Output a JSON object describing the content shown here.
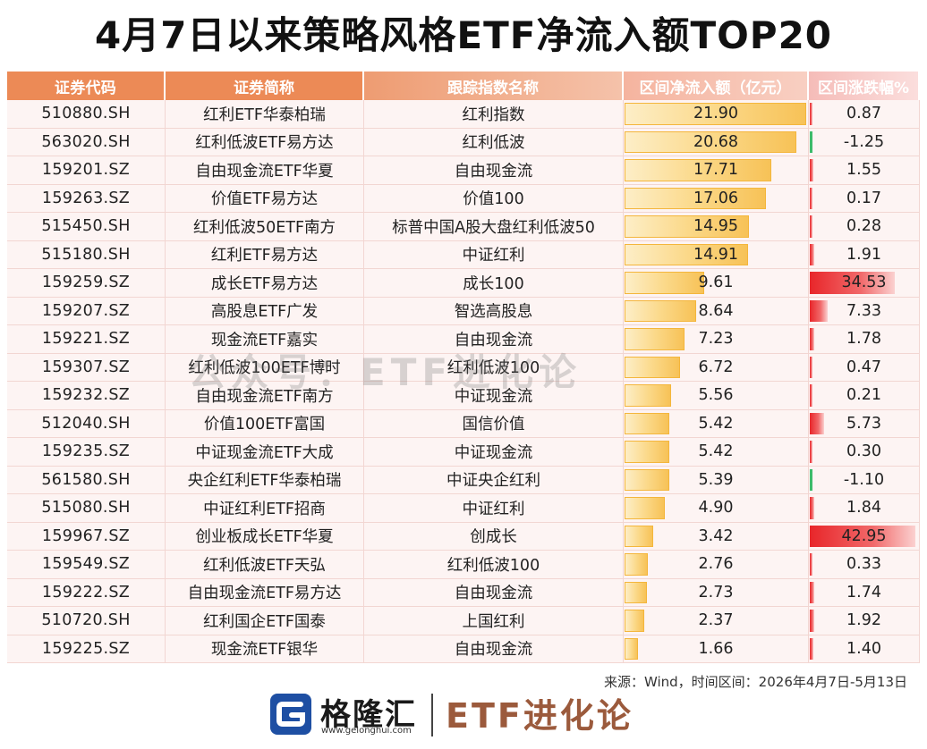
{
  "title": "4月7日以来策略风格ETF净流入额TOP20",
  "headers": {
    "code": "证券代码",
    "name": "证券简称",
    "index": "跟踪指数名称",
    "flow": "区间净流入额（亿元）",
    "chg": "区间涨跌幅%"
  },
  "rows": [
    {
      "code": "510880.SH",
      "name": "红利ETF华泰柏瑞",
      "index": "红利指数",
      "flow": "21.90",
      "chg": "0.87"
    },
    {
      "code": "563020.SH",
      "name": "红利低波ETF易方达",
      "index": "红利低波",
      "flow": "20.68",
      "chg": "-1.25"
    },
    {
      "code": "159201.SZ",
      "name": "自由现金流ETF华夏",
      "index": "自由现金流",
      "flow": "17.71",
      "chg": "1.55"
    },
    {
      "code": "159263.SZ",
      "name": "价值ETF易方达",
      "index": "价值100",
      "flow": "17.06",
      "chg": "0.17"
    },
    {
      "code": "515450.SH",
      "name": "红利低波50ETF南方",
      "index": "标普中国A股大盘红利低波50",
      "flow": "14.95",
      "chg": "0.28"
    },
    {
      "code": "515180.SH",
      "name": "红利ETF易方达",
      "index": "中证红利",
      "flow": "14.91",
      "chg": "1.91"
    },
    {
      "code": "159259.SZ",
      "name": "成长ETF易方达",
      "index": "成长100",
      "flow": "9.61",
      "chg": "34.53"
    },
    {
      "code": "159207.SZ",
      "name": "高股息ETF广发",
      "index": "智选高股息",
      "flow": "8.64",
      "chg": "7.33"
    },
    {
      "code": "159221.SZ",
      "name": "现金流ETF嘉实",
      "index": "自由现金流",
      "flow": "7.23",
      "chg": "1.78"
    },
    {
      "code": "159307.SZ",
      "name": "红利低波100ETF博时",
      "index": "红利低波100",
      "flow": "6.72",
      "chg": "0.47"
    },
    {
      "code": "159232.SZ",
      "name": "自由现金流ETF南方",
      "index": "中证现金流",
      "flow": "5.56",
      "chg": "0.21"
    },
    {
      "code": "512040.SH",
      "name": "价值100ETF富国",
      "index": "国信价值",
      "flow": "5.42",
      "chg": "5.73"
    },
    {
      "code": "159235.SZ",
      "name": "中证现金流ETF大成",
      "index": "中证现金流",
      "flow": "5.42",
      "chg": "0.30"
    },
    {
      "code": "561580.SH",
      "name": "央企红利ETF华泰柏瑞",
      "index": "中证央企红利",
      "flow": "5.39",
      "chg": "-1.10"
    },
    {
      "code": "515080.SH",
      "name": "中证红利ETF招商",
      "index": "中证红利",
      "flow": "4.90",
      "chg": "1.84"
    },
    {
      "code": "159967.SZ",
      "name": "创业板成长ETF华夏",
      "index": "创成长",
      "flow": "3.42",
      "chg": "42.95"
    },
    {
      "code": "159549.SZ",
      "name": "红利低波ETF天弘",
      "index": "红利低波100",
      "flow": "2.76",
      "chg": "0.33"
    },
    {
      "code": "159222.SZ",
      "name": "自由现金流ETF易方达",
      "index": "自由现金流",
      "flow": "2.73",
      "chg": "1.74"
    },
    {
      "code": "510720.SH",
      "name": "红利国企ETF国泰",
      "index": "上国红利",
      "flow": "2.37",
      "chg": "1.92"
    },
    {
      "code": "159225.SZ",
      "name": "现金流ETF银华",
      "index": "自由现金流",
      "flow": "1.66",
      "chg": "1.40"
    }
  ],
  "chart_data": {
    "type": "table",
    "columns": [
      "证券代码",
      "证券简称",
      "跟踪指数名称",
      "区间净流入额（亿元）",
      "区间涨跌幅%"
    ],
    "flow_max": 21.9,
    "chg_max": 42.95
  },
  "watermark": "公众号：ETF进化论",
  "source": "来源：Wind，时间区间：2026年4月7日-5月13日",
  "footer": {
    "logo_text": "格隆汇",
    "logo_url": "www.gelonghui.com",
    "brand": "ETF进化论"
  },
  "colors": {
    "header": "#ec8a56",
    "flow_bar": "#f7c257",
    "chg_pos": "#e8262a",
    "chg_neg": "#3dbb6b",
    "brand": "#9b5a3c"
  }
}
